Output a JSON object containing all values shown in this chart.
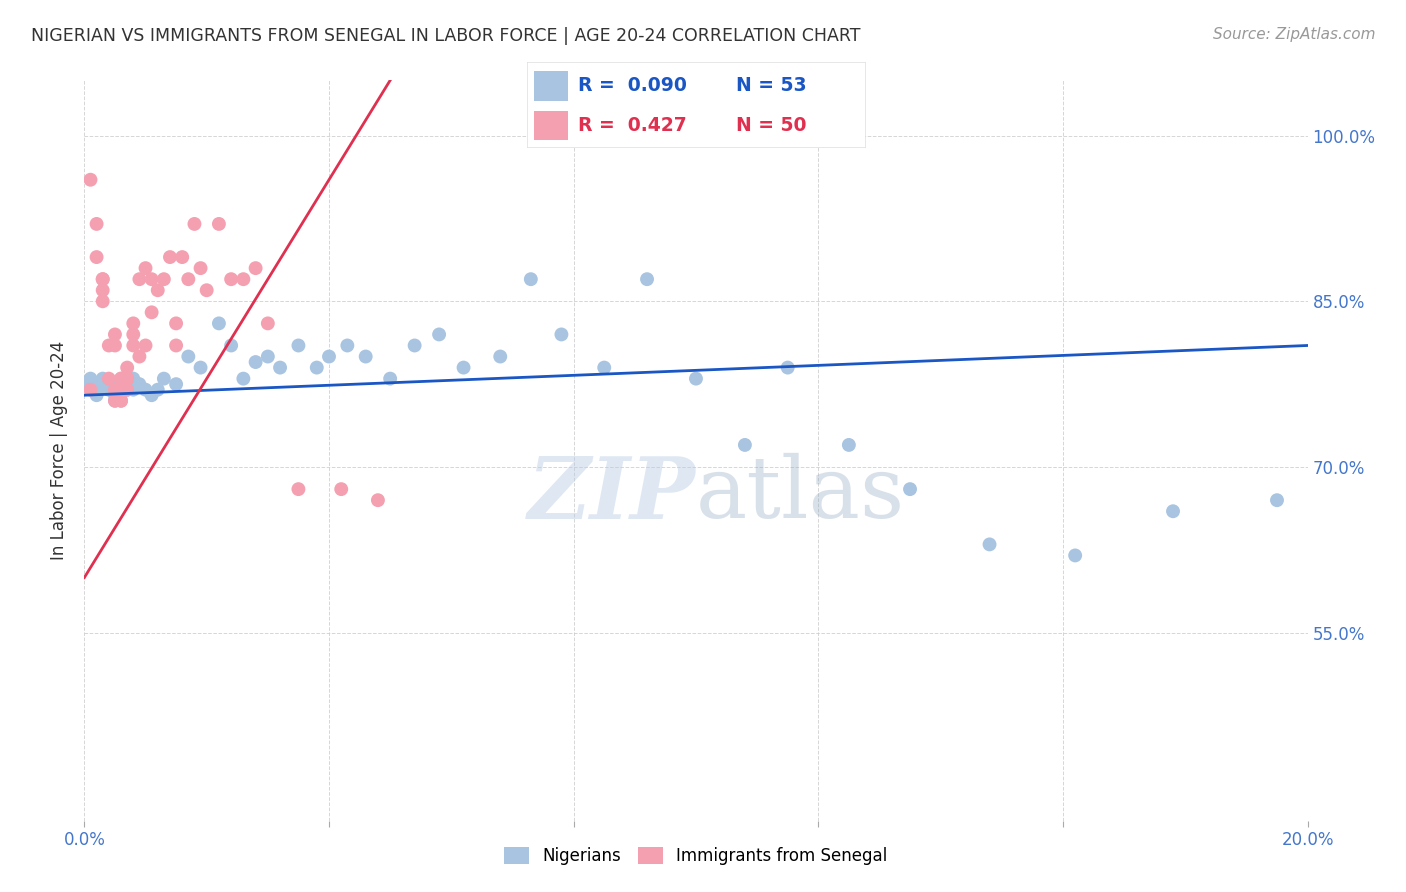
{
  "title": "NIGERIAN VS IMMIGRANTS FROM SENEGAL IN LABOR FORCE | AGE 20-24 CORRELATION CHART",
  "source": "Source: ZipAtlas.com",
  "ylabel": "In Labor Force | Age 20-24",
  "xlim": [
    0.0,
    0.2
  ],
  "ylim": [
    0.38,
    1.05
  ],
  "xticks": [
    0.0,
    0.04,
    0.08,
    0.12,
    0.16,
    0.2
  ],
  "xticklabels": [
    "0.0%",
    "",
    "",
    "",
    "",
    "20.0%"
  ],
  "yticks": [
    0.55,
    0.7,
    0.85,
    1.0
  ],
  "yticklabels": [
    "55.0%",
    "70.0%",
    "85.0%",
    "100.0%"
  ],
  "nigerians_x": [
    0.001,
    0.001,
    0.002,
    0.002,
    0.003,
    0.003,
    0.004,
    0.004,
    0.005,
    0.005,
    0.006,
    0.006,
    0.007,
    0.007,
    0.008,
    0.008,
    0.009,
    0.01,
    0.011,
    0.012,
    0.013,
    0.015,
    0.017,
    0.019,
    0.022,
    0.024,
    0.026,
    0.028,
    0.03,
    0.032,
    0.035,
    0.038,
    0.04,
    0.043,
    0.046,
    0.05,
    0.054,
    0.058,
    0.062,
    0.068,
    0.073,
    0.078,
    0.085,
    0.092,
    0.1,
    0.108,
    0.115,
    0.125,
    0.135,
    0.148,
    0.162,
    0.178,
    0.195
  ],
  "nigerians_y": [
    0.78,
    0.775,
    0.77,
    0.765,
    0.775,
    0.78,
    0.77,
    0.775,
    0.76,
    0.765,
    0.77,
    0.775,
    0.77,
    0.775,
    0.77,
    0.78,
    0.775,
    0.77,
    0.765,
    0.77,
    0.78,
    0.775,
    0.8,
    0.79,
    0.83,
    0.81,
    0.78,
    0.795,
    0.8,
    0.79,
    0.81,
    0.79,
    0.8,
    0.81,
    0.8,
    0.78,
    0.81,
    0.82,
    0.79,
    0.8,
    0.87,
    0.82,
    0.79,
    0.87,
    0.78,
    0.72,
    0.79,
    0.72,
    0.68,
    0.63,
    0.62,
    0.66,
    0.67
  ],
  "senegal_x": [
    0.001,
    0.001,
    0.002,
    0.002,
    0.003,
    0.003,
    0.003,
    0.003,
    0.004,
    0.004,
    0.005,
    0.005,
    0.005,
    0.005,
    0.006,
    0.006,
    0.006,
    0.006,
    0.006,
    0.007,
    0.007,
    0.007,
    0.007,
    0.008,
    0.008,
    0.008,
    0.009,
    0.009,
    0.01,
    0.01,
    0.011,
    0.011,
    0.012,
    0.013,
    0.014,
    0.015,
    0.015,
    0.016,
    0.017,
    0.018,
    0.019,
    0.02,
    0.022,
    0.024,
    0.026,
    0.028,
    0.03,
    0.035,
    0.042,
    0.048
  ],
  "senegal_y": [
    0.96,
    0.77,
    0.92,
    0.89,
    0.87,
    0.85,
    0.86,
    0.87,
    0.81,
    0.78,
    0.82,
    0.81,
    0.77,
    0.76,
    0.78,
    0.76,
    0.77,
    0.76,
    0.78,
    0.77,
    0.78,
    0.79,
    0.78,
    0.82,
    0.81,
    0.83,
    0.8,
    0.87,
    0.81,
    0.88,
    0.87,
    0.84,
    0.86,
    0.87,
    0.89,
    0.81,
    0.83,
    0.89,
    0.87,
    0.92,
    0.88,
    0.86,
    0.92,
    0.87,
    0.87,
    0.88,
    0.83,
    0.68,
    0.68,
    0.67
  ],
  "nigerian_color": "#a8c4e0",
  "senegal_color": "#f4a0b0",
  "nigerian_line_color": "#1a56c4",
  "senegal_line_color": "#e03050",
  "R_nigerian": "0.090",
  "N_nigerian": "53",
  "R_senegal": "0.427",
  "N_senegal": "50",
  "watermark_zip": "ZIP",
  "watermark_atlas": "atlas",
  "background_color": "#ffffff",
  "grid_color": "#cccccc",
  "axis_color": "#4477cc",
  "title_color": "#333333"
}
